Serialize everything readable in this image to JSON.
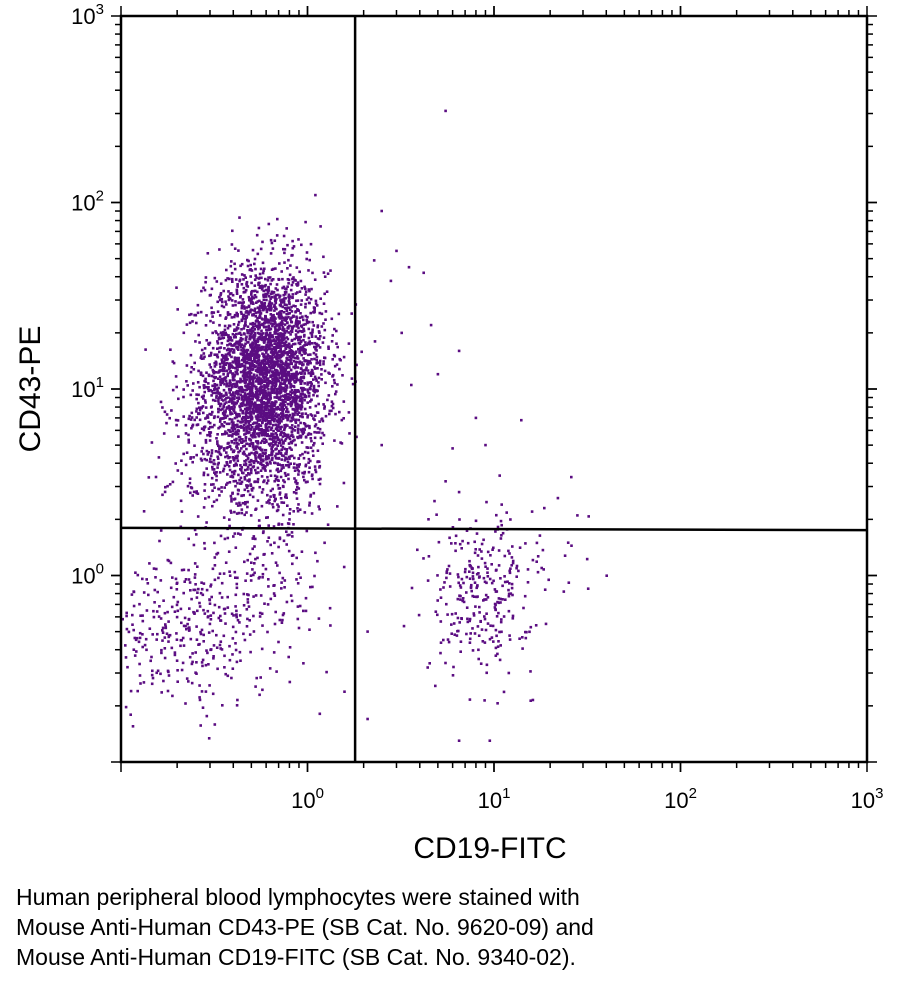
{
  "chart_data": {
    "type": "scatter",
    "title": "",
    "xlabel": "CD19-FITC",
    "ylabel": "CD43-PE",
    "xscale": "log",
    "yscale": "log",
    "xlim": [
      0.1,
      1000
    ],
    "ylim": [
      0.1,
      1000
    ],
    "xticks": [
      {
        "base": "10",
        "exp": "0",
        "value": 1
      },
      {
        "base": "10",
        "exp": "1",
        "value": 10
      },
      {
        "base": "10",
        "exp": "2",
        "value": 100
      },
      {
        "base": "10",
        "exp": "3",
        "value": 1000
      }
    ],
    "yticks": [
      {
        "base": "10",
        "exp": "0",
        "value": 1
      },
      {
        "base": "10",
        "exp": "1",
        "value": 10
      },
      {
        "base": "10",
        "exp": "2",
        "value": 100
      },
      {
        "base": "10",
        "exp": "3",
        "value": 1000
      }
    ],
    "point_color": "#5b0d82",
    "quadrant_gates": {
      "x": 1.8,
      "y_left": 1.8,
      "y_right": 1.75
    },
    "clusters": [
      {
        "name": "",
        "center": [
          0.6,
          12
        ],
        "spread_log10": [
          0.16,
          0.28
        ],
        "count": 3400
      },
      {
        "name": "",
        "center": [
          0.45,
          4.5
        ],
        "spread_log10": [
          0.2,
          0.25
        ],
        "count": 500
      },
      {
        "name": "",
        "center": [
          0.22,
          0.5
        ],
        "spread_log10": [
          0.22,
          0.2
        ],
        "count": 320
      },
      {
        "name": "",
        "center": [
          0.6,
          1.0
        ],
        "spread_log10": [
          0.18,
          0.25
        ],
        "count": 160
      },
      {
        "name": "",
        "center": [
          8.5,
          0.75
        ],
        "spread_log10": [
          0.14,
          0.2
        ],
        "count": 260
      },
      {
        "name": "",
        "center": [
          12,
          1.3
        ],
        "spread_log10": [
          0.25,
          0.15
        ],
        "count": 50
      }
    ],
    "outliers": [
      [
        5.5,
        310
      ],
      [
        2.5,
        90
      ],
      [
        3.0,
        55
      ],
      [
        3.5,
        45
      ],
      [
        4.2,
        42
      ],
      [
        2.8,
        38
      ],
      [
        4.6,
        22
      ],
      [
        3.2,
        20
      ],
      [
        2.3,
        18
      ],
      [
        6.5,
        16
      ],
      [
        3.6,
        10.5
      ],
      [
        5.0,
        12
      ],
      [
        8.0,
        7.0
      ],
      [
        14,
        6.8
      ],
      [
        2.5,
        5.0
      ],
      [
        6.0,
        4.8
      ],
      [
        9.0,
        5.0
      ],
      [
        5.5,
        3.2
      ],
      [
        6.5,
        2.8
      ],
      [
        11,
        2.4
      ],
      [
        22,
        2.6
      ],
      [
        16,
        2.2
      ],
      [
        28,
        2.1
      ],
      [
        25,
        1.5
      ],
      [
        32,
        0.85
      ],
      [
        19,
        0.55
      ],
      [
        12,
        0.3
      ],
      [
        2.1,
        0.17
      ],
      [
        9.5,
        0.13
      ],
      [
        6.5,
        0.13
      ],
      [
        2.1,
        0.5
      ]
    ]
  },
  "caption": {
    "lines": [
      "Human peripheral blood lymphocytes were stained with",
      "Mouse Anti-Human CD43-PE (SB Cat. No. 9620-09) and",
      "Mouse Anti-Human CD19-FITC (SB Cat. No. 9340-02)."
    ]
  }
}
